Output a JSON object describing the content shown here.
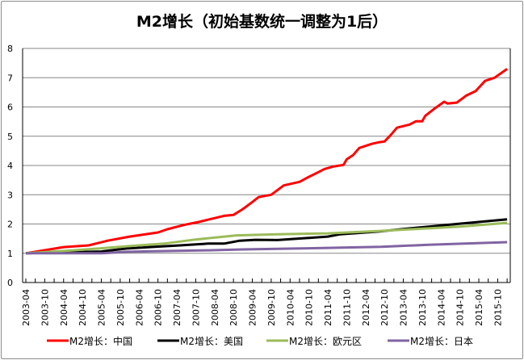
{
  "chart_data": {
    "type": "line",
    "title": "M2增长（初始基数统一调整为1后）",
    "xlabel": "",
    "ylabel": "",
    "ylim": [
      0,
      8
    ],
    "yticks": [
      0,
      1,
      2,
      3,
      4,
      5,
      6,
      7,
      8
    ],
    "xlim": [
      "2003-04",
      "2016-02"
    ],
    "xticks": [
      "2003-04",
      "2003-10",
      "2004-04",
      "2004-10",
      "2005-04",
      "2005-10",
      "2006-04",
      "2006-10",
      "2007-04",
      "2007-10",
      "2008-04",
      "2008-10",
      "2009-04",
      "2009-10",
      "2010-04",
      "2010-10",
      "2011-04",
      "2011-10",
      "2012-04",
      "2012-10",
      "2013-04",
      "2013-10",
      "2014-04",
      "2014-10",
      "2015-04",
      "2015-10"
    ],
    "grid": "horizontal",
    "legend_position": "bottom",
    "series": [
      {
        "name": "M2增长：中国",
        "color": "#ff0000",
        "points": [
          [
            "2003-04",
            1.0
          ],
          [
            "2004-04",
            1.21
          ],
          [
            "2004-12",
            1.27
          ],
          [
            "2005-06",
            1.43
          ],
          [
            "2006-01",
            1.57
          ],
          [
            "2006-10",
            1.71
          ],
          [
            "2007-01",
            1.82
          ],
          [
            "2007-06",
            1.96
          ],
          [
            "2007-11",
            2.07
          ],
          [
            "2008-02",
            2.15
          ],
          [
            "2008-07",
            2.28
          ],
          [
            "2008-10",
            2.31
          ],
          [
            "2009-01",
            2.51
          ],
          [
            "2009-04",
            2.75
          ],
          [
            "2009-06",
            2.92
          ],
          [
            "2009-10",
            3.0
          ],
          [
            "2010-02",
            3.32
          ],
          [
            "2010-07",
            3.44
          ],
          [
            "2010-10",
            3.61
          ],
          [
            "2011-01",
            3.77
          ],
          [
            "2011-03",
            3.88
          ],
          [
            "2011-06",
            3.97
          ],
          [
            "2011-09",
            4.02
          ],
          [
            "2011-10",
            4.21
          ],
          [
            "2011-12",
            4.35
          ],
          [
            "2012-02",
            4.6
          ],
          [
            "2012-06",
            4.74
          ],
          [
            "2012-08",
            4.79
          ],
          [
            "2012-10",
            4.82
          ],
          [
            "2012-12",
            5.04
          ],
          [
            "2013-02",
            5.29
          ],
          [
            "2013-06",
            5.4
          ],
          [
            "2013-08",
            5.51
          ],
          [
            "2013-10",
            5.51
          ],
          [
            "2013-11",
            5.7
          ],
          [
            "2014-02",
            5.95
          ],
          [
            "2014-05",
            6.18
          ],
          [
            "2014-06",
            6.12
          ],
          [
            "2014-09",
            6.15
          ],
          [
            "2014-12",
            6.39
          ],
          [
            "2015-03",
            6.54
          ],
          [
            "2015-06",
            6.89
          ],
          [
            "2015-09",
            7.0
          ],
          [
            "2016-01",
            7.3
          ]
        ]
      },
      {
        "name": "M2增长：美国",
        "color": "#000000",
        "points": [
          [
            "2003-04",
            1.0
          ],
          [
            "2005-04",
            1.06
          ],
          [
            "2005-12",
            1.16
          ],
          [
            "2006-09",
            1.22
          ],
          [
            "2007-05",
            1.27
          ],
          [
            "2008-02",
            1.33
          ],
          [
            "2008-07",
            1.33
          ],
          [
            "2008-12",
            1.43
          ],
          [
            "2009-05",
            1.46
          ],
          [
            "2009-12",
            1.45
          ],
          [
            "2011-04",
            1.57
          ],
          [
            "2011-08",
            1.65
          ],
          [
            "2012-08",
            1.74
          ],
          [
            "2013-08",
            1.87
          ],
          [
            "2014-10",
            2.01
          ],
          [
            "2016-01",
            2.16
          ]
        ]
      },
      {
        "name": "M2增长：欧元区",
        "color": "#9bbb59",
        "points": [
          [
            "2003-04",
            1.0
          ],
          [
            "2004-07",
            1.1
          ],
          [
            "2005-04",
            1.17
          ],
          [
            "2005-12",
            1.24
          ],
          [
            "2006-12",
            1.33
          ],
          [
            "2007-10",
            1.47
          ],
          [
            "2008-11",
            1.61
          ],
          [
            "2009-12",
            1.65
          ],
          [
            "2011-04",
            1.68
          ],
          [
            "2012-08",
            1.76
          ],
          [
            "2013-12",
            1.85
          ],
          [
            "2014-10",
            1.91
          ],
          [
            "2016-01",
            2.04
          ]
        ]
      },
      {
        "name": "M2增长：日本",
        "color": "#8064a2",
        "points": [
          [
            "2003-04",
            1.0
          ],
          [
            "2005-04",
            1.0
          ],
          [
            "2005-12",
            1.05
          ],
          [
            "2008-02",
            1.1
          ],
          [
            "2009-01",
            1.13
          ],
          [
            "2009-12",
            1.15
          ],
          [
            "2011-07",
            1.19
          ],
          [
            "2012-09",
            1.22
          ],
          [
            "2013-12",
            1.29
          ],
          [
            "2016-01",
            1.38
          ]
        ]
      }
    ]
  }
}
